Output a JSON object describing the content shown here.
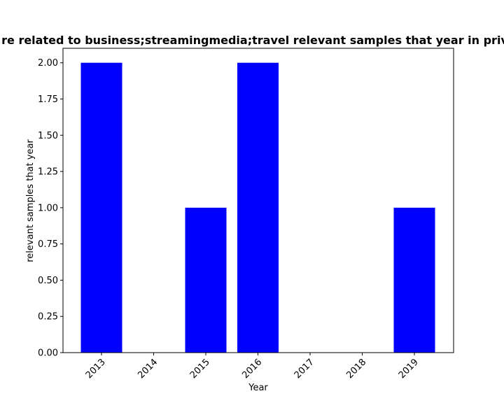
{
  "chart_data": {
    "type": "bar",
    "title": "re related to business;streamingmedia;travel relevant samples that year in priv",
    "xlabel": "Year",
    "ylabel": "relevant samples that year",
    "categories": [
      "2013",
      "2014",
      "2015",
      "2016",
      "2017",
      "2018",
      "2019"
    ],
    "values": [
      2,
      0,
      1,
      2,
      0,
      0,
      1
    ],
    "ylim": [
      0,
      2.1
    ],
    "yticks": [
      "0.00",
      "0.25",
      "0.50",
      "0.75",
      "1.00",
      "1.25",
      "1.50",
      "1.75",
      "2.00"
    ],
    "bar_color": "#0000ff",
    "grid": false,
    "legend": "none"
  }
}
